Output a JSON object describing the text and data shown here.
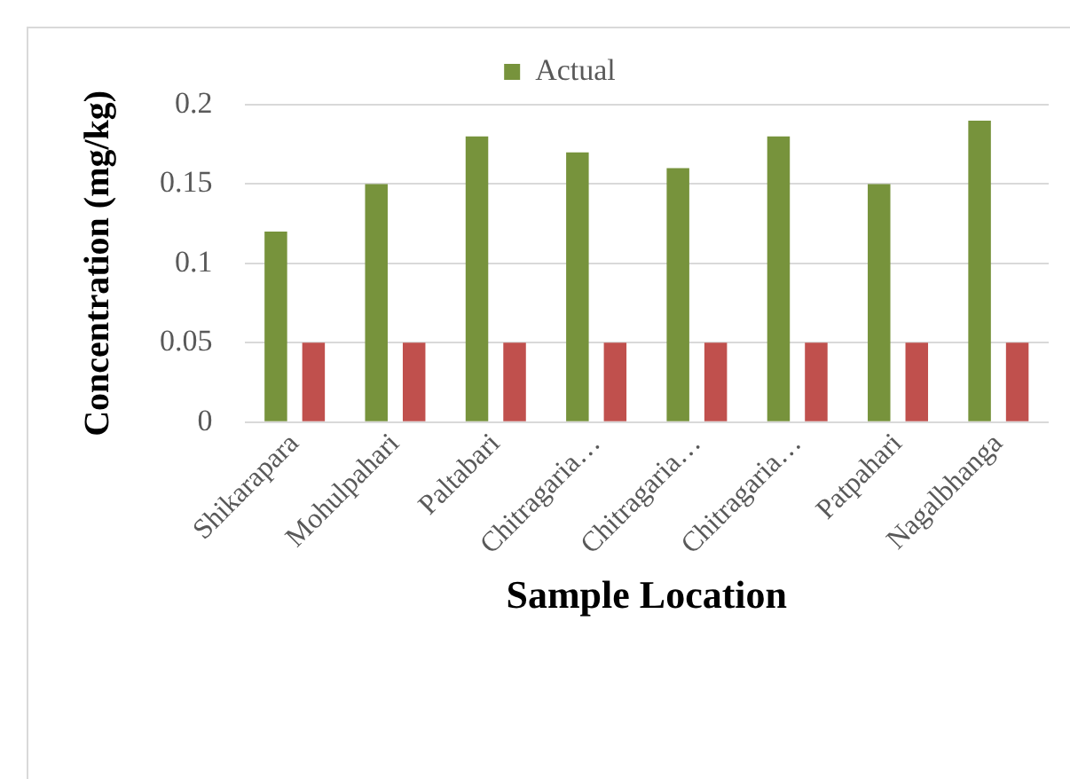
{
  "chart_data": {
    "type": "bar",
    "xlabel": "Sample Location",
    "ylabel": "Concentration (mg/kg)",
    "categories": [
      "Shikarapara",
      "Mohulpahari",
      "Paltabari",
      "Chitragaria…",
      "Chitragaria…",
      "Chitragaria…",
      "Patpahari",
      "Nagalbhanga"
    ],
    "series": [
      {
        "name": "Actual",
        "color": "#77933c",
        "values": [
          0.12,
          0.15,
          0.18,
          0.17,
          0.16,
          0.18,
          0.15,
          0.19
        ]
      },
      {
        "color": "#c0504d",
        "values": [
          0.05,
          0.05,
          0.05,
          0.05,
          0.05,
          0.05,
          0.05,
          0.05
        ]
      }
    ],
    "ylim": [
      0,
      0.2
    ],
    "yticks": [
      0,
      0.05,
      0.1,
      0.15,
      0.2
    ],
    "grid": "y",
    "legend": "top"
  }
}
